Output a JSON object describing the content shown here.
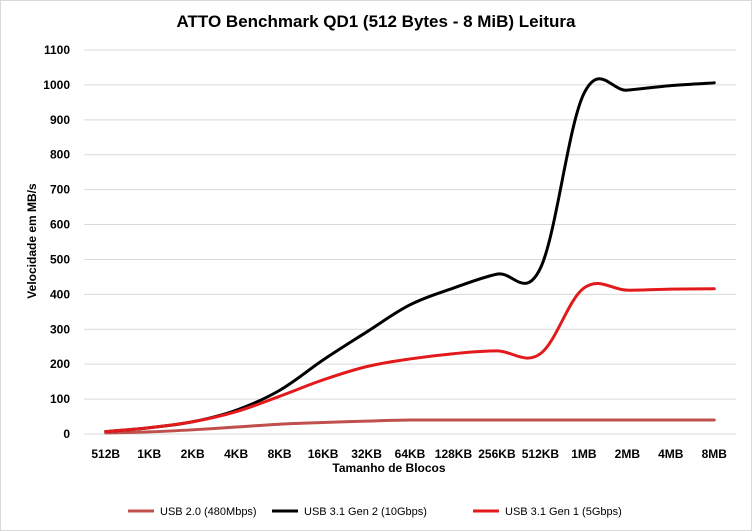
{
  "chart_data": {
    "type": "line",
    "title": "ATTO Benchmark QD1 (512 Bytes - 8 MiB) Leitura",
    "xlabel": "Tamanho de Blocos",
    "ylabel": "Velocidade em MB/s",
    "ylim": [
      0,
      1100
    ],
    "yticks": [
      0,
      100,
      200,
      300,
      400,
      500,
      600,
      700,
      800,
      900,
      1000,
      1100
    ],
    "grid": true,
    "legend": "bottom",
    "categories": [
      "512B",
      "1KB",
      "2KB",
      "4KB",
      "8KB",
      "16KB",
      "32KB",
      "64KB",
      "128KB",
      "256KB",
      "512KB",
      "1MB",
      "2MB",
      "4MB",
      "8MB"
    ],
    "series": [
      {
        "name": "USB 2.0 (480Mbps)",
        "color": "#c0504d",
        "values": [
          3,
          6,
          12,
          20,
          28,
          33,
          37,
          40,
          40,
          40,
          40,
          40,
          40,
          40,
          40
        ]
      },
      {
        "name": "USB 3.1 Gen 2 (10Gbps)",
        "color": "#000000",
        "values": [
          7,
          18,
          35,
          68,
          125,
          212,
          292,
          370,
          418,
          458,
          475,
          975,
          985,
          998,
          1006
        ]
      },
      {
        "name": "USB 3.1 Gen 1 (5Gbps)",
        "color": "#e31a1c",
        "values": [
          7,
          18,
          35,
          64,
          108,
          155,
          193,
          215,
          230,
          238,
          230,
          418,
          412,
          415,
          416
        ]
      }
    ]
  }
}
